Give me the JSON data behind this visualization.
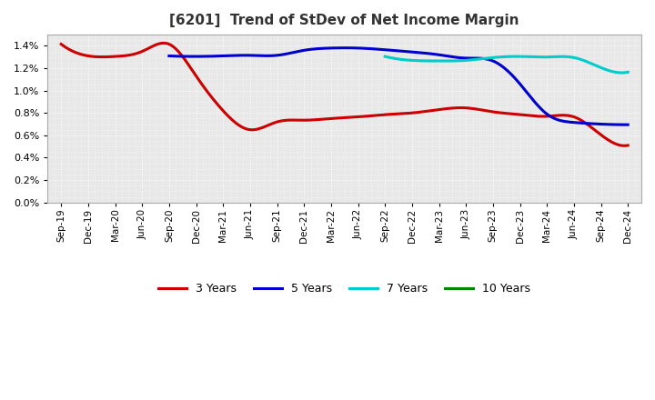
{
  "title": "[6201]  Trend of StDev of Net Income Margin",
  "background_color": "#ffffff",
  "plot_background_color": "#e8e8e8",
  "grid_color": "#ffffff",
  "xlim_start": -0.5,
  "xlim_end": 21.5,
  "ylim": [
    0.0,
    0.015
  ],
  "yticks": [
    0.0,
    0.002,
    0.004,
    0.006,
    0.008,
    0.01,
    0.012,
    0.014
  ],
  "x_labels": [
    "Sep-19",
    "Dec-19",
    "Mar-20",
    "Jun-20",
    "Sep-20",
    "Dec-20",
    "Mar-21",
    "Jun-21",
    "Sep-21",
    "Dec-21",
    "Mar-22",
    "Jun-22",
    "Sep-22",
    "Dec-22",
    "Mar-23",
    "Jun-23",
    "Sep-23",
    "Dec-23",
    "Mar-24",
    "Jun-24",
    "Sep-24",
    "Dec-24"
  ],
  "series": {
    "3yr": {
      "color": "#cc0000",
      "label": "3 Years",
      "values": [
        0.01415,
        0.0131,
        0.01305,
        0.0135,
        0.01415,
        0.0113,
        0.0082,
        0.0065,
        0.0072,
        0.00735,
        0.0075,
        0.00765,
        0.00785,
        0.008,
        0.0083,
        0.00845,
        0.0081,
        0.00785,
        0.0077,
        0.00765,
        0.00605,
        0.0051
      ]
    },
    "5yr": {
      "color": "#0000cc",
      "label": "5 Years",
      "values": [
        null,
        null,
        null,
        null,
        0.0131,
        0.01305,
        0.0131,
        0.01315,
        0.01315,
        0.0136,
        0.0138,
        0.0138,
        0.01365,
        0.01345,
        0.0132,
        0.0129,
        0.01265,
        0.0106,
        0.0079,
        0.00715,
        0.007,
        0.00695
      ]
    },
    "7yr": {
      "color": "#00cccc",
      "label": "7 Years",
      "values": [
        null,
        null,
        null,
        null,
        null,
        null,
        null,
        null,
        null,
        null,
        null,
        null,
        0.01305,
        0.0127,
        0.01265,
        0.0127,
        0.01295,
        0.01305,
        0.013,
        0.01295,
        0.01205,
        0.01165
      ]
    },
    "10yr": {
      "color": "#008800",
      "label": "10 Years",
      "values": [
        null,
        null,
        null,
        null,
        null,
        null,
        null,
        null,
        null,
        null,
        null,
        null,
        null,
        null,
        null,
        null,
        null,
        null,
        null,
        null,
        null,
        null
      ]
    }
  },
  "legend_items": [
    "3 Years",
    "5 Years",
    "7 Years",
    "10 Years"
  ],
  "legend_colors": [
    "#cc0000",
    "#0000cc",
    "#00cccc",
    "#008800"
  ]
}
